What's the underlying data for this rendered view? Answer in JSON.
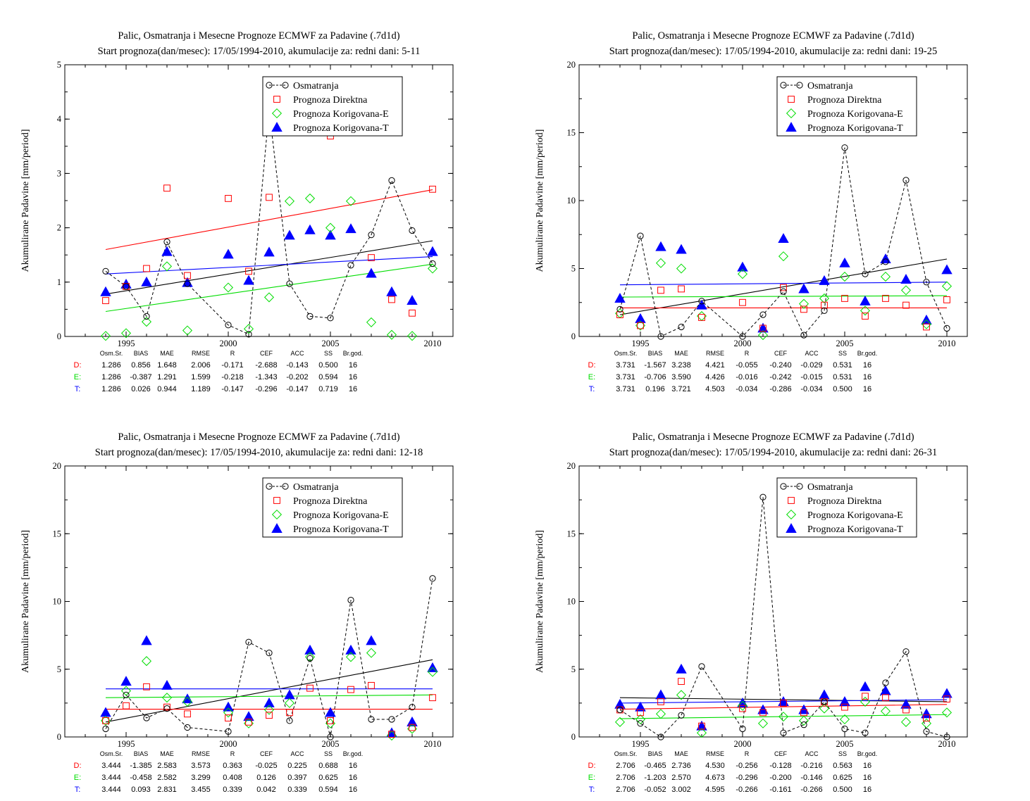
{
  "colors": {
    "obs": "#000000",
    "direct": "#ff0000",
    "corrE": "#00dd00",
    "corrT": "#0000ff"
  },
  "stats_header": [
    "Osm.Sr.",
    "BIAS",
    "MAE",
    "RMSE",
    "R",
    "CEF",
    "ACC",
    "SS",
    "Br.god."
  ],
  "chart_data": [
    {
      "type": "scatter",
      "title": "Palic, Osmatranja i Mesecne Prognoze ECMWF za Padavine (.7d1d)",
      "subtitle": "Start prognoza(dan/mesec): 17/05/1994-2010, akumulacije za: redni dani: 5-11",
      "ylabel": "Akumulirane Padavine [mm/period]",
      "xlim": [
        1992,
        2011
      ],
      "ylim": [
        0,
        5
      ],
      "yticks": [
        0,
        1,
        2,
        3,
        4,
        5
      ],
      "xticks": [
        1995,
        2000,
        2005,
        2010
      ],
      "legend_position": "top-right",
      "grid": false,
      "x": [
        1994,
        1995,
        1996,
        1997,
        1998,
        1999,
        2000,
        2001,
        2002,
        2003,
        2004,
        2005,
        2006,
        2007,
        2008,
        2009,
        2010
      ],
      "series": [
        {
          "name": "Osmatranja",
          "marker": "circle",
          "line": "dashed",
          "values": [
            1.2,
            0.92,
            0.37,
            1.74,
            0.97,
            null,
            0.21,
            0.04,
            4.17,
            0.97,
            0.37,
            0.34,
            1.31,
            1.87,
            2.87,
            1.95,
            1.34
          ]
        },
        {
          "name": "Prognoza Direktna",
          "marker": "square",
          "values": [
            0.66,
            0.92,
            1.25,
            2.73,
            1.12,
            null,
            2.54,
            1.2,
            2.56,
            null,
            null,
            3.69,
            null,
            1.45,
            0.68,
            0.43,
            2.71
          ]
        },
        {
          "name": "Prognoza Korigovana-E",
          "marker": "diamond",
          "values": [
            0.01,
            0.06,
            0.27,
            1.29,
            0.11,
            null,
            0.9,
            0.14,
            0.72,
            2.49,
            2.54,
            2.0,
            2.49,
            0.26,
            0.03,
            0.01,
            1.25
          ]
        },
        {
          "name": "Prognoza Korigovana-T",
          "marker": "triangle",
          "values": [
            0.82,
            0.96,
            1.0,
            1.56,
            0.99,
            null,
            1.51,
            1.03,
            1.55,
            1.86,
            1.96,
            1.86,
            1.98,
            1.16,
            0.82,
            0.66,
            1.56
          ]
        }
      ],
      "trends": {
        "obs": [
          0.78,
          1.76
        ],
        "direct": [
          1.6,
          2.7
        ],
        "corrE": [
          0.46,
          1.33
        ],
        "corrT": [
          1.15,
          1.47
        ]
      },
      "stats": {
        "D": [
          "1.286",
          "0.856",
          "1.648",
          "2.006",
          "-0.171",
          "-2.688",
          "-0.143",
          "0.500",
          "16"
        ],
        "E": [
          "1.286",
          "-0.387",
          "1.291",
          "1.599",
          "-0.218",
          "-1.343",
          "-0.202",
          "0.594",
          "16"
        ],
        "T": [
          "1.286",
          "0.026",
          "0.944",
          "1.189",
          "-0.147",
          "-0.296",
          "-0.147",
          "0.719",
          "16"
        ]
      }
    },
    {
      "type": "scatter",
      "title": "Palic, Osmatranja i Mesecne Prognoze ECMWF za Padavine (.7d1d)",
      "subtitle": "Start prognoza(dan/mesec): 17/05/1994-2010, akumulacije za: redni dani: 19-25",
      "ylabel": "Akumulirane Padavine [mm/period]",
      "xlim": [
        1992,
        2011
      ],
      "ylim": [
        0,
        20
      ],
      "yticks": [
        0,
        5,
        10,
        15,
        20
      ],
      "xticks": [
        1995,
        2000,
        2005,
        2010
      ],
      "legend_position": "top-right",
      "grid": false,
      "x": [
        1994,
        1995,
        1996,
        1997,
        1998,
        1999,
        2000,
        2001,
        2002,
        2003,
        2004,
        2005,
        2006,
        2007,
        2008,
        2009,
        2010
      ],
      "series": [
        {
          "name": "Osmatranja",
          "marker": "circle",
          "line": "dashed",
          "values": [
            2.0,
            7.4,
            0.0,
            0.7,
            2.6,
            null,
            0.0,
            1.6,
            3.3,
            0.1,
            1.9,
            13.9,
            4.6,
            5.5,
            11.5,
            4.0,
            0.6
          ]
        },
        {
          "name": "Prognoza Direktna",
          "marker": "square",
          "values": [
            1.6,
            0.8,
            3.4,
            3.5,
            1.4,
            null,
            2.5,
            0.6,
            3.6,
            2.0,
            2.3,
            2.8,
            1.5,
            2.8,
            2.3,
            0.7,
            2.7
          ]
        },
        {
          "name": "Prognoza Korigovana-E",
          "marker": "diamond",
          "values": [
            1.7,
            0.8,
            5.4,
            5.0,
            1.5,
            null,
            4.6,
            0.1,
            5.9,
            2.4,
            2.8,
            4.4,
            1.9,
            4.4,
            3.4,
            0.9,
            3.7
          ]
        },
        {
          "name": "Prognoza Korigovana-T",
          "marker": "triangle",
          "values": [
            2.8,
            1.3,
            6.6,
            6.4,
            2.3,
            null,
            5.1,
            0.6,
            7.2,
            3.5,
            4.1,
            5.4,
            2.6,
            5.7,
            4.2,
            1.2,
            4.9
          ]
        }
      ],
      "trends": {
        "obs": [
          1.6,
          5.7
        ],
        "direct": [
          2.1,
          2.1
        ],
        "corrE": [
          2.9,
          3.0
        ],
        "corrT": [
          3.8,
          4.0
        ]
      },
      "stats": {
        "D": [
          "3.731",
          "-1.567",
          "3.238",
          "4.421",
          "-0.055",
          "-0.240",
          "-0.029",
          "0.531",
          "16"
        ],
        "E": [
          "3.731",
          "-0.706",
          "3.590",
          "4.426",
          "-0.016",
          "-0.242",
          "-0.015",
          "0.531",
          "16"
        ],
        "T": [
          "3.731",
          "0.196",
          "3.721",
          "4.503",
          "-0.034",
          "-0.286",
          "-0.034",
          "0.500",
          "16"
        ]
      }
    },
    {
      "type": "scatter",
      "title": "Palic, Osmatranja i Mesecne Prognoze ECMWF za Padavine (.7d1d)",
      "subtitle": "Start prognoza(dan/mesec): 17/05/1994-2010, akumulacije za: redni dani: 12-18",
      "ylabel": "Akumulirane Padavine [mm/period]",
      "xlim": [
        1992,
        2011
      ],
      "ylim": [
        0,
        20
      ],
      "yticks": [
        0,
        5,
        10,
        15,
        20
      ],
      "xticks": [
        1995,
        2000,
        2005,
        2010
      ],
      "legend_position": "top-right",
      "grid": false,
      "x": [
        1994,
        1995,
        1996,
        1997,
        1998,
        1999,
        2000,
        2001,
        2002,
        2003,
        2004,
        2005,
        2006,
        2007,
        2008,
        2009,
        2010
      ],
      "series": [
        {
          "name": "Osmatranja",
          "marker": "circle",
          "line": "dashed",
          "values": [
            0.6,
            3.1,
            1.4,
            2.1,
            0.7,
            null,
            0.4,
            7.0,
            6.2,
            1.2,
            5.8,
            0.0,
            10.1,
            1.3,
            1.3,
            2.2,
            11.7
          ]
        },
        {
          "name": "Prognoza Direktna",
          "marker": "square",
          "values": [
            1.2,
            2.3,
            3.7,
            2.2,
            1.7,
            null,
            1.4,
            1.1,
            1.6,
            1.8,
            3.6,
            1.2,
            3.5,
            3.8,
            0.2,
            0.7,
            2.9
          ]
        },
        {
          "name": "Prognoza Korigovana-E",
          "marker": "diamond",
          "values": [
            1.2,
            3.4,
            5.6,
            2.9,
            2.6,
            null,
            1.8,
            1.0,
            2.0,
            2.5,
            5.9,
            1.0,
            5.9,
            6.2,
            0.1,
            0.6,
            4.8
          ]
        },
        {
          "name": "Prognoza Korigovana-T",
          "marker": "triangle",
          "values": [
            1.8,
            4.1,
            7.1,
            3.8,
            2.8,
            null,
            2.2,
            1.5,
            2.5,
            3.1,
            6.4,
            1.8,
            6.4,
            7.1,
            0.3,
            1.1,
            5.1
          ]
        }
      ],
      "trends": {
        "obs": [
          1.1,
          5.7
        ],
        "direct": [
          2.05,
          2.05
        ],
        "corrE": [
          2.9,
          3.1
        ],
        "corrT": [
          3.55,
          3.55
        ]
      },
      "stats": {
        "D": [
          "3.444",
          "-1.385",
          "2.583",
          "3.573",
          "0.363",
          "-0.025",
          "0.225",
          "0.688",
          "16"
        ],
        "E": [
          "3.444",
          "-0.458",
          "2.582",
          "3.299",
          "0.408",
          "0.126",
          "0.397",
          "0.625",
          "16"
        ],
        "T": [
          "3.444",
          "0.093",
          "2.831",
          "3.455",
          "0.339",
          "0.042",
          "0.339",
          "0.594",
          "16"
        ]
      }
    },
    {
      "type": "scatter",
      "title": "Palic, Osmatranja i Mesecne Prognoze ECMWF za Padavine (.7d1d)",
      "subtitle": "Start prognoza(dan/mesec): 17/05/1994-2010, akumulacije za: redni dani: 26-31",
      "ylabel": "Akumulirane Padavine [mm/period]",
      "xlim": [
        1992,
        2011
      ],
      "ylim": [
        0,
        20
      ],
      "yticks": [
        0,
        5,
        10,
        15,
        20
      ],
      "xticks": [
        1995,
        2000,
        2005,
        2010
      ],
      "legend_position": "top-right",
      "grid": false,
      "x": [
        1994,
        1995,
        1996,
        1997,
        1998,
        1999,
        2000,
        2001,
        2002,
        2003,
        2004,
        2005,
        2006,
        2007,
        2008,
        2009,
        2010
      ],
      "series": [
        {
          "name": "Osmatranja",
          "marker": "circle",
          "line": "dashed",
          "values": [
            2.0,
            1.0,
            0.0,
            1.6,
            5.2,
            null,
            0.6,
            17.7,
            0.3,
            0.9,
            2.6,
            0.6,
            0.3,
            4.0,
            6.3,
            0.4,
            0.0
          ]
        },
        {
          "name": "Prognoza Direktna",
          "marker": "square",
          "values": [
            2.0,
            1.8,
            2.6,
            4.1,
            0.8,
            null,
            2.1,
            1.8,
            2.5,
            1.8,
            2.6,
            2.2,
            3.0,
            2.9,
            2.0,
            1.4,
            2.8
          ]
        },
        {
          "name": "Prognoza Korigovana-E",
          "marker": "diamond",
          "values": [
            1.1,
            1.3,
            1.7,
            3.1,
            0.3,
            null,
            2.3,
            1.0,
            1.5,
            1.2,
            2.1,
            1.3,
            2.6,
            1.9,
            1.1,
            1.0,
            1.8
          ]
        },
        {
          "name": "Prognoza Korigovana-T",
          "marker": "triangle",
          "values": [
            2.4,
            2.2,
            3.1,
            5.0,
            0.8,
            null,
            2.5,
            2.0,
            2.6,
            2.0,
            3.1,
            2.6,
            3.7,
            3.4,
            2.4,
            1.7,
            3.2
          ]
        }
      ],
      "trends": {
        "obs": [
          2.9,
          2.6
        ],
        "direct": [
          2.05,
          2.4
        ],
        "corrE": [
          1.35,
          1.65
        ],
        "corrT": [
          2.5,
          2.75
        ]
      },
      "stats": {
        "D": [
          "2.706",
          "-0.465",
          "2.736",
          "4.530",
          "-0.256",
          "-0.128",
          "-0.216",
          "0.563",
          "16"
        ],
        "E": [
          "2.706",
          "-1.203",
          "2.570",
          "4.673",
          "-0.296",
          "-0.200",
          "-0.146",
          "0.625",
          "16"
        ],
        "T": [
          "2.706",
          "-0.052",
          "3.002",
          "4.595",
          "-0.266",
          "-0.161",
          "-0.266",
          "0.500",
          "16"
        ]
      }
    }
  ]
}
